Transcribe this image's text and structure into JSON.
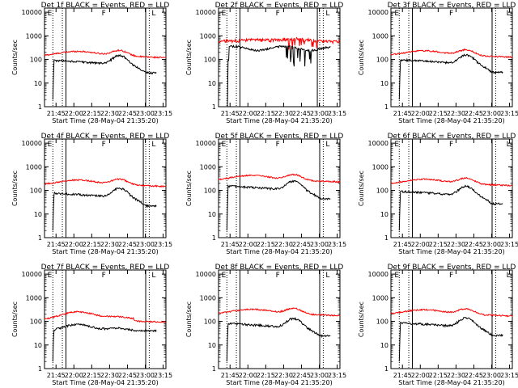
{
  "chart_data": {
    "type": "line",
    "shared": {
      "xlabel": "Start Time (28-May-04 21:35:20)",
      "ylabel": "Counts/sec",
      "xticks": [
        "21:45",
        "22:00",
        "22:15",
        "22:30",
        "22:45",
        "23:00",
        "23:15"
      ],
      "xtick_minutes": [
        9.67,
        24.67,
        39.67,
        54.67,
        69.67,
        84.67,
        99.67
      ],
      "xlim_minutes": [
        0,
        102
      ],
      "ylim": [
        1,
        15000
      ],
      "yscale": "log",
      "yticks": [
        "1",
        "10",
        "100",
        "1000",
        "10000"
      ],
      "ytick_values": [
        1,
        10,
        100,
        1000,
        10000
      ],
      "grid": false,
      "series_colors": {
        "events": "#000000",
        "lld": "#ff0000"
      },
      "markers": {
        "E": 2.5,
        "F": 48,
        "L": 90
      },
      "markers_right": {
        "E": 3.0,
        "F": 49,
        "L": 97
      },
      "dotted_minutes": [
        7,
        15,
        85,
        88
      ],
      "solid_minutes": [
        18,
        85
      ],
      "solid_minutes_p2": [
        18,
        83
      ],
      "solid_minutes_p4": [
        18,
        83
      ]
    },
    "panels": [
      {
        "title": "Det 1f  BLACK = Events, RED = LLD",
        "shape": "normal",
        "events_base": 90,
        "lld_base": 170,
        "end_events": 38
      },
      {
        "title": "Det 2f  BLACK = Events, RED = LLD",
        "shape": "noisy",
        "events_base": 300,
        "lld_base": 600,
        "end_events": 200
      },
      {
        "title": "Det 3f  BLACK = Events, RED = LLD",
        "shape": "normal",
        "events_base": 95,
        "lld_base": 180,
        "end_events": 40
      },
      {
        "title": "Det 4f  BLACK = Events, RED = LLD",
        "shape": "normal",
        "events_base": 75,
        "lld_base": 210,
        "end_events": 35
      },
      {
        "title": "Det 5f  BLACK = Events, RED = LLD",
        "shape": "normal",
        "events_base": 150,
        "lld_base": 330,
        "end_events": 85
      },
      {
        "title": "Det 6f  BLACK = Events, RED = LLD",
        "shape": "normal",
        "events_base": 90,
        "lld_base": 230,
        "end_events": 35
      },
      {
        "title": "Det 7f  BLACK = Events, RED = LLD",
        "shape": "hump",
        "events_base": 50,
        "lld_base": 150,
        "end_events": 50
      },
      {
        "title": "Det 8f  BLACK = Events, RED = LLD",
        "shape": "normal",
        "events_base": 80,
        "lld_base": 250,
        "end_events": 35
      },
      {
        "title": "Det 9f  BLACK = Events, RED = LLD",
        "shape": "normal",
        "events_base": 85,
        "lld_base": 240,
        "end_events": 35
      }
    ]
  }
}
